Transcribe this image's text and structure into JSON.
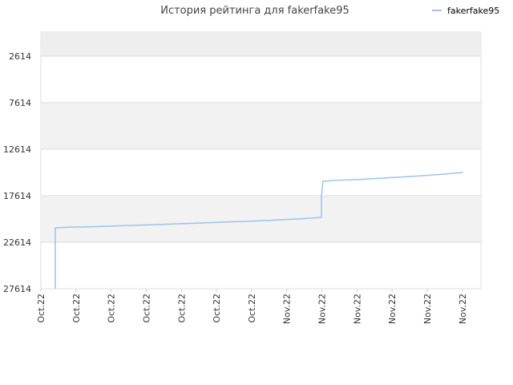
{
  "chart_data": {
    "type": "line",
    "title": "История рейтинга для fakerfake95",
    "x": [
      0.41,
      0.41,
      0.8,
      1.4,
      2.0,
      2.6,
      3.3,
      4.0,
      4.6,
      5.2,
      5.9,
      6.5,
      7.1,
      7.7,
      7.99,
      7.99,
      8.03,
      8.4,
      9.0,
      9.6,
      10.2,
      10.8,
      11.4,
      12.02
    ],
    "series": [
      {
        "name": "fakerfake95",
        "color": "#99c4ee",
        "values": [
          27614,
          21062,
          21000,
          20950,
          20880,
          20800,
          20720,
          20620,
          20540,
          20450,
          20360,
          20270,
          20150,
          20030,
          19941,
          17614,
          16062,
          15960,
          15880,
          15750,
          15620,
          15480,
          15320,
          15114
        ]
      }
    ],
    "xlim": [
      0,
      12.53
    ],
    "xticks": [
      {
        "value": 0,
        "label": "Oct.22"
      },
      {
        "value": 1,
        "label": "Oct.22"
      },
      {
        "value": 2,
        "label": "Oct.22"
      },
      {
        "value": 3,
        "label": "Oct.22"
      },
      {
        "value": 4,
        "label": "Oct.22"
      },
      {
        "value": 5,
        "label": "Oct.22"
      },
      {
        "value": 6,
        "label": "Oct.22"
      },
      {
        "value": 7,
        "label": "Nov.22"
      },
      {
        "value": 8,
        "label": "Nov.22"
      },
      {
        "value": 9,
        "label": "Nov.22"
      },
      {
        "value": 10,
        "label": "Nov.22"
      },
      {
        "value": 11,
        "label": "Nov.22"
      },
      {
        "value": 12,
        "label": "Nov.22"
      }
    ],
    "ylim": [
      27614,
      28
    ],
    "yticks": [
      2614,
      7614,
      12614,
      17614,
      22614,
      27614
    ],
    "y_inverted": true,
    "grid": true,
    "legend": "top-right"
  }
}
